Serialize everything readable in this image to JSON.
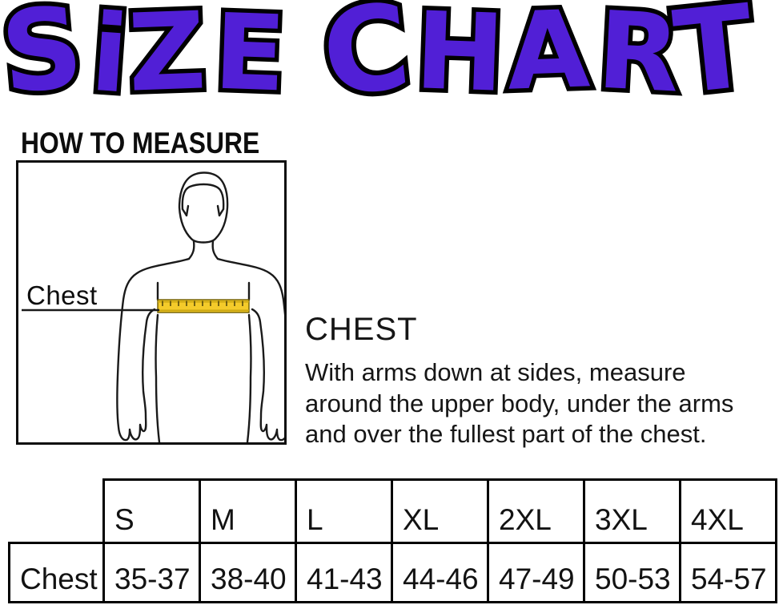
{
  "title": {
    "text": "SiZE CHART"
  },
  "colors": {
    "title_purple": "#511FD6",
    "outline_black": "#000000",
    "tape_yellow": "#F4CB2A",
    "text_black": "#1A1A1A"
  },
  "how_to_measure": {
    "heading": "HOW TO MEASURE"
  },
  "figure": {
    "label": "Chest"
  },
  "chest_section": {
    "heading": "CHEST",
    "lines": [
      "With arms down at sides, measure",
      "around the upper body, under the arms",
      "and over the fullest part of the chest."
    ]
  },
  "size_table": {
    "row_label": "Chest",
    "columns": [
      "S",
      "M",
      "L",
      "XL",
      "2XL",
      "3XL",
      "4XL"
    ],
    "values": [
      "35-37",
      "38-40",
      "41-43",
      "44-46",
      "47-49",
      "50-53",
      "54-57"
    ]
  }
}
